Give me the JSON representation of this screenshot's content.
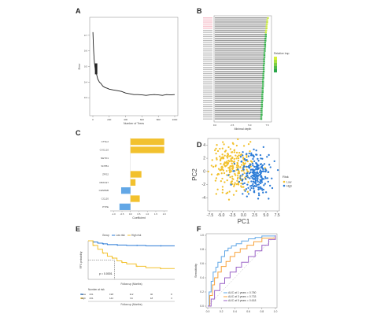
{
  "figure": {
    "credit": ""
  },
  "colors": {
    "yellow": "#f2c12e",
    "blue": "#2b7bd6",
    "lightblue": "#62a7e6",
    "red": "#e05252",
    "green": "#37b24d",
    "lime": "#c7e83c",
    "gray": "#bdbdbd",
    "black": "#222222"
  },
  "chart_data": [
    {
      "panel": "A",
      "type": "line",
      "xlabel": "Number of Trees",
      "ylabel": "Error",
      "xlim": [
        0,
        1000
      ],
      "ylim": [
        0.2,
        0.8
      ],
      "x_ticks": [
        "0",
        "200",
        "400",
        "600",
        "800",
        "1000"
      ],
      "y_ticks": [
        "0.3",
        "0.4",
        "0.5",
        "0.6",
        "0.7"
      ],
      "series": [
        {
          "x": [
            1,
            5,
            10,
            15,
            20,
            25,
            30,
            40,
            50,
            60,
            70,
            80,
            100,
            120,
            150,
            180,
            200,
            250,
            300,
            350,
            400,
            450,
            500,
            550,
            600,
            650,
            700,
            750,
            800,
            850,
            900,
            950,
            1000
          ],
          "y": [
            0.72,
            0.66,
            0.6,
            0.55,
            0.52,
            0.5,
            0.48,
            0.46,
            0.44,
            0.42,
            0.41,
            0.4,
            0.39,
            0.375,
            0.365,
            0.36,
            0.355,
            0.35,
            0.345,
            0.34,
            0.33,
            0.325,
            0.32,
            0.32,
            0.318,
            0.315,
            0.318,
            0.32,
            0.318,
            0.315,
            0.32,
            0.318,
            0.32
          ]
        }
      ]
    },
    {
      "panel": "B",
      "type": "bar",
      "orientation": "horizontal",
      "xlabel": "Minimal depth",
      "legend_title": "Relative Imp",
      "x_ticks": [
        "0.0",
        "2.5",
        "5.0",
        "7.5"
      ],
      "xlim": [
        0,
        8
      ],
      "values": [
        7.6,
        7.5,
        7.5,
        7.45,
        7.4,
        7.4,
        7.35,
        7.3,
        7.3,
        7.3,
        7.25,
        7.25,
        7.2,
        7.2,
        7.2,
        7.15,
        7.15,
        7.1,
        7.1,
        7.1,
        7.05,
        7.05,
        7.05,
        7.0,
        7.0,
        7.0,
        7.0,
        6.95,
        6.95,
        6.95,
        6.9,
        6.9,
        6.9,
        6.9,
        6.85,
        6.85,
        6.85,
        6.8,
        6.8,
        6.8,
        6.8,
        6.75,
        6.75,
        6.75,
        6.7,
        6.7,
        6.7,
        6.7,
        6.65,
        6.65
      ]
    },
    {
      "panel": "C",
      "type": "bar",
      "orientation": "horizontal",
      "xlabel": "Coefficient",
      "xlim": [
        -1.2,
        2.2
      ],
      "categories": [
        "CTSL2",
        "CXCL10",
        "NETO1",
        "SNTB1",
        "ZPG2",
        "FBXO27",
        "CENPEB",
        "CCL20",
        "PTPE"
      ],
      "values": [
        2.0,
        2.0,
        0.0,
        0.0,
        0.65,
        0.3,
        -0.55,
        0.55,
        -0.65
      ],
      "x_ticks": [
        "-1.0",
        "-0.5",
        "0.0",
        "0.5",
        "1.0",
        "1.5",
        "2.0"
      ]
    },
    {
      "panel": "D",
      "type": "scatter",
      "xlabel": "PC1",
      "ylabel": "PC2",
      "xlim": [
        -8,
        8
      ],
      "ylim": [
        -6,
        5
      ],
      "x_ticks": [
        "-7.5",
        "-5.0",
        "-2.5",
        "0.0",
        "2.5",
        "5.0",
        "7.5"
      ],
      "y_ticks": [
        "-4",
        "-2",
        "0",
        "2",
        "4"
      ],
      "legend_title": "Risk",
      "series": [
        {
          "name": "Low",
          "center": [
            -2.5,
            0.5
          ],
          "spread": [
            2.2,
            1.8
          ],
          "count": 230
        },
        {
          "name": "High",
          "center": [
            2.5,
            -0.3
          ],
          "spread": [
            1.8,
            1.6
          ],
          "count": 230
        }
      ]
    },
    {
      "panel": "E",
      "type": "line",
      "xlabel": "Follow up (Months)",
      "ylabel": "RFS probability",
      "p_value": "p = 0.0001",
      "legend_title": "Group",
      "legend_entries": [
        "Low risk",
        "High risk"
      ],
      "xlim": [
        0,
        180
      ],
      "ylim": [
        0,
        1
      ],
      "series": [
        {
          "name": "Low risk",
          "x": [
            0,
            10,
            20,
            30,
            40,
            60,
            80,
            100,
            120,
            150,
            180
          ],
          "y": [
            1.0,
            0.97,
            0.94,
            0.92,
            0.9,
            0.89,
            0.88,
            0.88,
            0.87,
            0.87,
            0.87
          ]
        },
        {
          "name": "High risk",
          "x": [
            0,
            10,
            20,
            30,
            40,
            50,
            60,
            70,
            80,
            100,
            120,
            150,
            180
          ],
          "y": [
            1.0,
            0.88,
            0.78,
            0.68,
            0.6,
            0.55,
            0.48,
            0.44,
            0.4,
            0.34,
            0.3,
            0.28,
            0.28
          ]
        }
      ],
      "risk_table_title": "Number at risk",
      "risk_table": [
        {
          "group": "Low",
          "counts": [
            "231",
            "198",
            "112",
            "40",
            "8"
          ]
        },
        {
          "group": "High",
          "counts": [
            "231",
            "142",
            "64",
            "18",
            "3"
          ]
        }
      ]
    },
    {
      "panel": "F",
      "type": "line",
      "xlabel": "1-Specificity",
      "ylabel": "Sensitivity",
      "xlim": [
        0,
        1
      ],
      "ylim": [
        0,
        1
      ],
      "x_ticks": [
        "0.0",
        "0.2",
        "0.4",
        "0.6",
        "0.8",
        "1.0"
      ],
      "y_ticks": [
        "0.0",
        "0.2",
        "0.4",
        "0.6",
        "0.8",
        "1.0"
      ],
      "series": [
        {
          "name": "AUC at 1 years = 0.780",
          "x": [
            0,
            0.02,
            0.05,
            0.08,
            0.12,
            0.15,
            0.2,
            0.25,
            0.3,
            0.35,
            0.42,
            0.5,
            0.6,
            0.7,
            0.8,
            1.0
          ],
          "y": [
            0,
            0.2,
            0.35,
            0.48,
            0.55,
            0.62,
            0.7,
            0.78,
            0.82,
            0.85,
            0.88,
            0.92,
            0.95,
            0.97,
            0.99,
            1.0
          ]
        },
        {
          "name": "AUC at 3 years = 0.733",
          "x": [
            0,
            0.03,
            0.07,
            0.1,
            0.15,
            0.2,
            0.27,
            0.33,
            0.4,
            0.48,
            0.58,
            0.68,
            0.8,
            1.0
          ],
          "y": [
            0,
            0.15,
            0.3,
            0.4,
            0.48,
            0.56,
            0.63,
            0.7,
            0.76,
            0.81,
            0.86,
            0.91,
            0.96,
            1.0
          ]
        },
        {
          "name": "AUC at 5 years = 0.618",
          "x": [
            0,
            0.05,
            0.1,
            0.18,
            0.25,
            0.33,
            0.42,
            0.5,
            0.6,
            0.7,
            0.8,
            0.9,
            1.0
          ],
          "y": [
            0,
            0.1,
            0.22,
            0.32,
            0.4,
            0.48,
            0.55,
            0.62,
            0.7,
            0.78,
            0.86,
            0.94,
            1.0
          ]
        }
      ]
    }
  ],
  "panel_labels": [
    "A",
    "B",
    "C",
    "D",
    "E",
    "F"
  ]
}
